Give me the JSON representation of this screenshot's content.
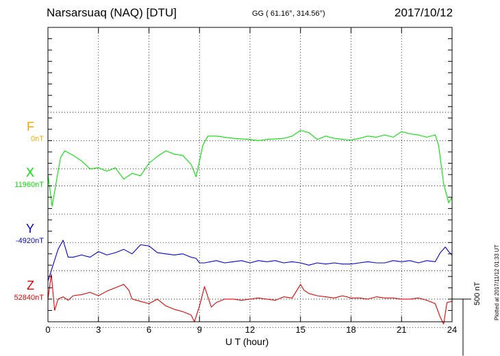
{
  "header": {
    "station": "Narsarsuaq (NAQ)  [DTU]",
    "coords": "GG ( 61.16°, 314.56°)",
    "date": "2017/10/12"
  },
  "plotted_note": "Plotted at 2017/11/12 01:33 UT",
  "chart_data": {
    "type": "line",
    "title": "Narsarsuaq (NAQ)  [DTU]",
    "xlabel": "U T (hour)",
    "ylabel": "",
    "xlim": [
      0,
      24
    ],
    "x_ticks": [
      0,
      3,
      6,
      9,
      12,
      15,
      18,
      21,
      24
    ],
    "units": "nT",
    "ylim": [
      -1600,
      1000
    ],
    "grid": true,
    "scale_bar": {
      "label": "500 nT",
      "nT": 500
    },
    "components": [
      {
        "letter": "F",
        "base_label": "0nT",
        "color": "#ffa500",
        "offset": 0,
        "x": [],
        "values": []
      },
      {
        "letter": "X",
        "base_label": "11960nT",
        "color": "#00e600",
        "offset": -400,
        "x": [
          0,
          0.25,
          0.5,
          0.75,
          1.0,
          1.5,
          2.0,
          2.5,
          3.0,
          3.5,
          4.0,
          4.5,
          5.0,
          5.5,
          6.0,
          6.5,
          7.0,
          7.5,
          8.0,
          8.5,
          8.8,
          9.2,
          9.5,
          10.0,
          10.5,
          11.0,
          11.5,
          12.0,
          12.5,
          13.0,
          13.5,
          14.0,
          14.5,
          15.0,
          15.5,
          16.0,
          16.5,
          17.0,
          17.5,
          18.0,
          18.5,
          19.0,
          19.5,
          20.0,
          20.5,
          21.0,
          21.5,
          22.0,
          22.5,
          23.0,
          23.2,
          23.5,
          23.8,
          24.0
        ],
        "values": [
          -300,
          -580,
          -360,
          -150,
          -90,
          -130,
          -180,
          -250,
          -240,
          -270,
          -240,
          -340,
          -290,
          -310,
          -200,
          -140,
          -90,
          -120,
          -130,
          -210,
          -320,
          -40,
          40,
          40,
          30,
          20,
          15,
          10,
          0,
          10,
          15,
          20,
          40,
          90,
          70,
          10,
          40,
          20,
          10,
          5,
          20,
          40,
          30,
          50,
          30,
          80,
          60,
          50,
          30,
          50,
          -40,
          -380,
          -550,
          -500
        ]
      },
      {
        "letter": "Y",
        "base_label": "-4920nT",
        "color": "#0000e6",
        "offset": -900,
        "x": [
          0,
          0.3,
          0.6,
          0.9,
          1.2,
          1.5,
          2.0,
          2.5,
          3.0,
          3.5,
          4.0,
          4.5,
          5.0,
          5.5,
          6.0,
          6.5,
          7.0,
          7.5,
          8.0,
          8.5,
          8.8,
          9.0,
          9.3,
          10.0,
          10.5,
          11.0,
          11.5,
          12.0,
          12.5,
          13.0,
          13.5,
          14.0,
          14.5,
          15.0,
          15.5,
          16.0,
          16.5,
          17.0,
          17.5,
          18.0,
          18.5,
          19.0,
          19.5,
          20.0,
          20.5,
          21.0,
          21.5,
          22.0,
          22.5,
          23.0,
          23.3,
          23.6,
          23.8,
          24.0
        ],
        "values": [
          -1240,
          -1100,
          -960,
          -880,
          -1030,
          -1030,
          -1010,
          -1030,
          -980,
          -1010,
          -990,
          -960,
          -1000,
          -920,
          -930,
          -990,
          -1000,
          -1010,
          -1000,
          -1030,
          -1040,
          -1080,
          -1080,
          -1060,
          -1080,
          -1070,
          -1060,
          -1080,
          -1060,
          -1070,
          -1060,
          -1080,
          -1070,
          -1080,
          -1100,
          -1080,
          -1090,
          -1080,
          -1090,
          -1090,
          -1080,
          -1070,
          -1080,
          -1080,
          -1060,
          -1070,
          -1060,
          -1080,
          -1060,
          -1070,
          -990,
          -940,
          -980,
          -1010
        ]
      },
      {
        "letter": "Z",
        "base_label": "52840nT",
        "color": "#e60000",
        "offset": -1400,
        "x": [
          0,
          0.2,
          0.4,
          0.6,
          0.9,
          1.2,
          1.5,
          2.0,
          2.5,
          3.0,
          3.5,
          4.0,
          4.5,
          4.8,
          5.0,
          5.5,
          6.0,
          6.5,
          7.0,
          7.5,
          8.0,
          8.5,
          8.7,
          9.0,
          9.3,
          9.7,
          10.0,
          10.5,
          11.0,
          11.5,
          12.0,
          12.5,
          13.0,
          13.5,
          14.0,
          14.5,
          15.0,
          15.2,
          15.5,
          16.0,
          16.5,
          17.0,
          17.5,
          18.0,
          18.5,
          19.0,
          19.5,
          20.0,
          20.5,
          21.0,
          21.5,
          22.0,
          22.5,
          23.0,
          23.3,
          23.5,
          23.7,
          24.0
        ],
        "values": [
          -1400,
          -1180,
          -1500,
          -1400,
          -1380,
          -1410,
          -1370,
          -1360,
          -1340,
          -1370,
          -1330,
          -1300,
          -1270,
          -1320,
          -1400,
          -1420,
          -1440,
          -1400,
          -1460,
          -1490,
          -1510,
          -1540,
          -1600,
          -1460,
          -1290,
          -1470,
          -1430,
          -1400,
          -1400,
          -1410,
          -1400,
          -1390,
          -1400,
          -1410,
          -1380,
          -1390,
          -1270,
          -1320,
          -1350,
          -1370,
          -1380,
          -1390,
          -1370,
          -1390,
          -1390,
          -1400,
          -1380,
          -1390,
          -1390,
          -1400,
          -1400,
          -1390,
          -1410,
          -1440,
          -1560,
          -1620,
          -1430,
          -1420
        ]
      }
    ]
  }
}
